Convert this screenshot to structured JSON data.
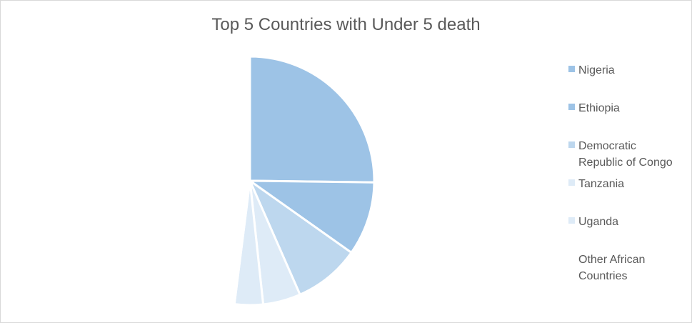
{
  "chart_data": {
    "type": "pie",
    "title": "Top 5 Countries with Under 5 death",
    "categories": [
      "Nigeria",
      "Ethiopia",
      "Democratic\nRepublic of Congo",
      "Tanzania",
      "Uganda",
      "Other African\nCountries"
    ],
    "values": [
      25.2,
      9.6,
      8.6,
      4.9,
      3.7,
      48.0
    ],
    "colors": [
      "#9dc3e6",
      "#9dc3e6",
      "#bdd7ee",
      "#deebf7",
      "#deebf7",
      "#ffffff"
    ],
    "legend": "right"
  }
}
